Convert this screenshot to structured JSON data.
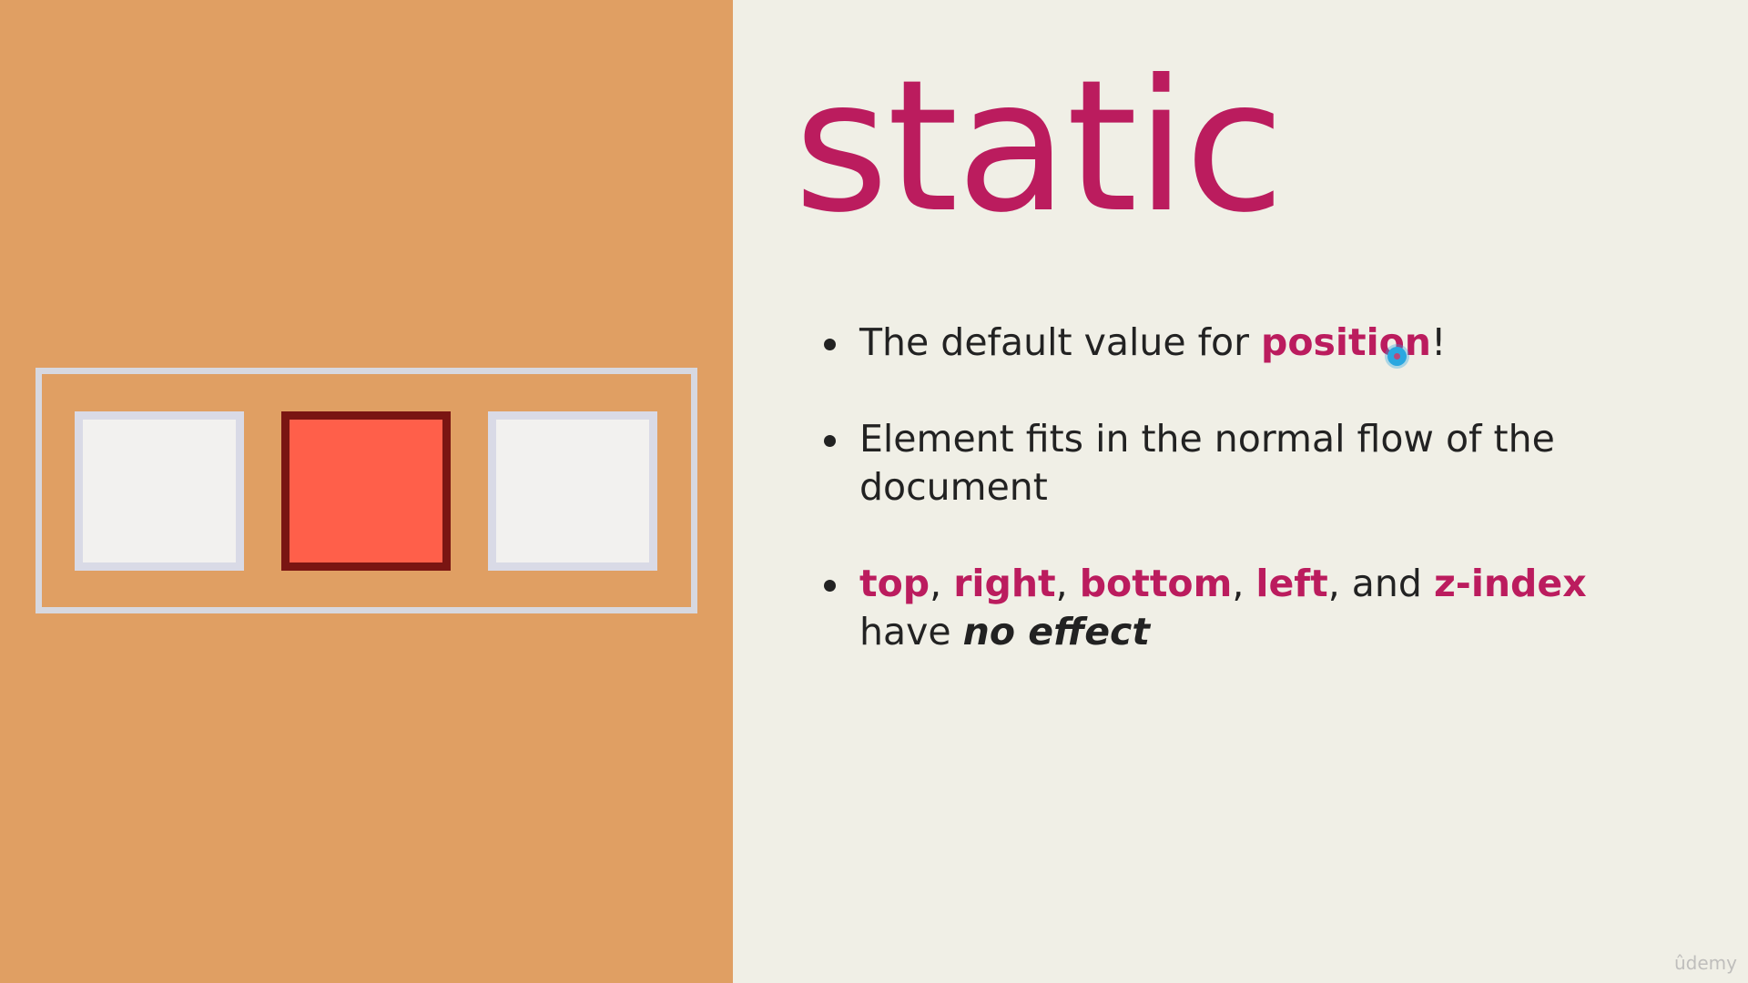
{
  "slide": {
    "title": "static",
    "bullets": [
      {
        "segments": [
          {
            "text": "The default value for ",
            "style": "normal"
          },
          {
            "text": "position",
            "style": "keyword"
          },
          {
            "text": "!",
            "style": "normal"
          }
        ]
      },
      {
        "segments": [
          {
            "text": "Element fits in the normal flow of the document",
            "style": "normal"
          }
        ]
      },
      {
        "segments": [
          {
            "text": "top",
            "style": "keyword"
          },
          {
            "text": ", ",
            "style": "normal"
          },
          {
            "text": "right",
            "style": "keyword"
          },
          {
            "text": ", ",
            "style": "normal"
          },
          {
            "text": "bottom",
            "style": "keyword"
          },
          {
            "text": ", ",
            "style": "normal"
          },
          {
            "text": "left",
            "style": "keyword"
          },
          {
            "text": ", and ",
            "style": "normal"
          },
          {
            "text": "z-index",
            "style": "keyword"
          },
          {
            "text": " have ",
            "style": "normal"
          },
          {
            "text": "no effect",
            "style": "emphasis"
          }
        ]
      }
    ],
    "watermark": "ûdemy"
  },
  "colors": {
    "left_panel": "#e09f63",
    "right_panel": "#f0efe6",
    "accent": "#bb1c5e",
    "highlight_box": "#ff5f4a",
    "highlight_border": "#7a1512",
    "plain_box": "#f2f1ef",
    "box_border": "#d9dae6"
  }
}
